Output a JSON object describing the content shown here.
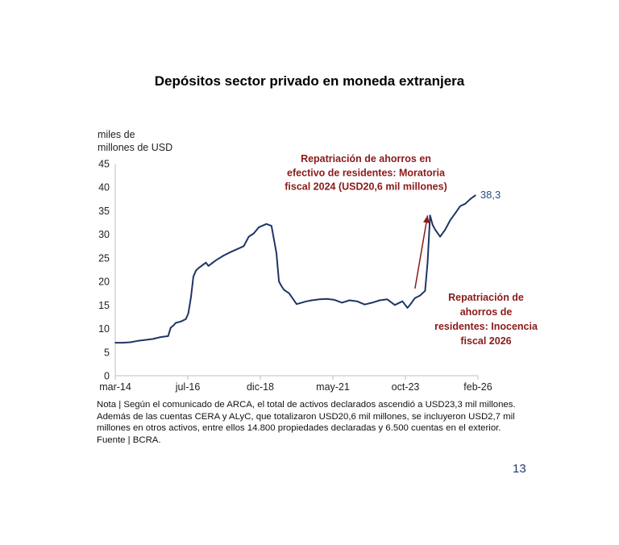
{
  "page_number": "13",
  "note": "Nota | Según el comunicado de ARCA, el total de activos declarados ascendió a USD23,3 mil millones. Además de las cuentas CERA y ALyC, que totalizaron USD20,6 mil millones, se incluyeron USD2,7 mil millones en otros activos, entre ellos 14.800 propiedades declaradas y 6.500 cuentas en el exterior.",
  "source": "Fuente | BCRA.",
  "colors": {
    "line": "#1f3566",
    "annotation": "#8b1a1a",
    "last_value": "#2d4a86",
    "axis": "#bfbfbf"
  },
  "chart_data": {
    "type": "line",
    "title": "Depósitos sector privado en moneda extranjera",
    "ylabel_lines": [
      "miles de",
      "millones de USD"
    ],
    "ylim": [
      0,
      45
    ],
    "yticks": [
      0,
      5,
      10,
      15,
      20,
      25,
      30,
      35,
      40,
      45
    ],
    "xlim": [
      "2014-03",
      "2026-03"
    ],
    "xtick_labels": [
      "mar-14",
      "jul-16",
      "dic-18",
      "may-21",
      "oct-23",
      "feb-26"
    ],
    "grid": false,
    "series": [
      {
        "values_x": [
          "2014-03",
          "2014-06",
          "2014-09",
          "2014-12",
          "2015-03",
          "2015-06",
          "2015-09",
          "2015-12",
          "2016-01",
          "2016-02",
          "2016-03",
          "2016-05",
          "2016-07",
          "2016-08",
          "2016-09",
          "2016-10",
          "2016-11",
          "2016-12",
          "2017-03",
          "2017-04",
          "2017-07",
          "2017-10",
          "2018-01",
          "2018-04",
          "2018-06",
          "2018-08",
          "2018-10",
          "2018-12",
          "2019-03",
          "2019-05",
          "2019-07",
          "2019-08",
          "2019-09",
          "2019-10",
          "2019-12",
          "2020-03",
          "2020-07",
          "2020-09",
          "2020-12",
          "2021-03",
          "2021-06",
          "2021-09",
          "2021-12",
          "2022-03",
          "2022-06",
          "2022-09",
          "2022-12",
          "2023-03",
          "2023-06",
          "2023-09",
          "2023-11",
          "2023-12",
          "2024-02",
          "2024-04",
          "2024-06",
          "2024-07",
          "2024-08",
          "2024-09",
          "2024-10",
          "2024-12",
          "2025-02",
          "2025-04",
          "2025-06",
          "2025-08",
          "2025-10",
          "2025-12",
          "2026-02"
        ],
        "values": [
          7.0,
          7.0,
          7.1,
          7.4,
          7.6,
          7.8,
          8.2,
          8.4,
          10.2,
          10.6,
          11.2,
          11.5,
          12.0,
          13.2,
          16.5,
          21.0,
          22.3,
          22.8,
          24.0,
          23.3,
          24.5,
          25.5,
          26.3,
          27.0,
          27.5,
          29.5,
          30.2,
          31.5,
          32.2,
          31.8,
          26.0,
          20.0,
          19.0,
          18.2,
          17.5,
          15.2,
          15.8,
          16.0,
          16.2,
          16.3,
          16.1,
          15.5,
          16.0,
          15.8,
          15.1,
          15.5,
          16.0,
          16.2,
          15.0,
          15.8,
          14.4,
          15.0,
          16.5,
          17.0,
          18.0,
          24.0,
          34.0,
          32.0,
          31.0,
          29.5,
          31.0,
          33.0,
          34.5,
          36.0,
          36.5,
          37.5,
          38.3
        ]
      }
    ],
    "last_value_label": "38,3",
    "annotations": [
      {
        "text_lines": [
          "Repatriación de ahorros en",
          "efectivo de residentes: Moratoria",
          "fiscal 2024 (USD20,6 mil millones)"
        ],
        "arrow_from": [
          "2024-02",
          18.5
        ],
        "arrow_to": [
          "2024-07",
          34.0
        ]
      },
      {
        "text_lines": [
          "Repatriación de",
          "ahorros de",
          "residentes: Inocencia",
          "fiscal 2026"
        ]
      }
    ]
  }
}
